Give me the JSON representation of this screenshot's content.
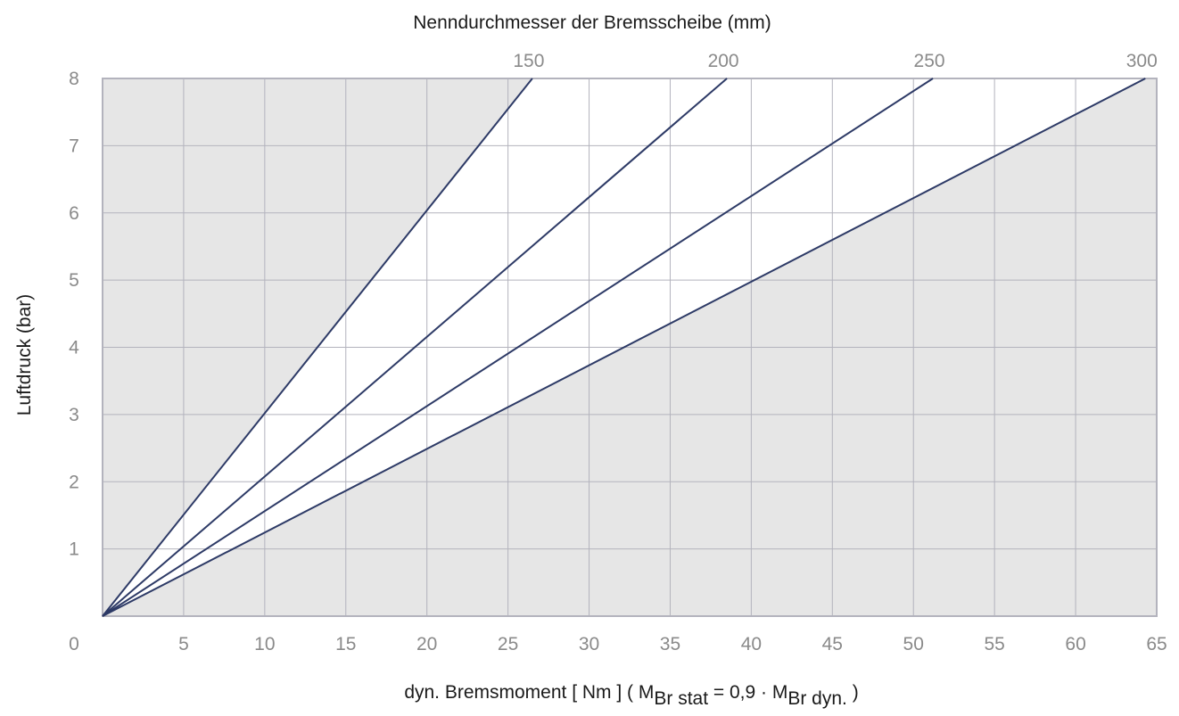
{
  "chart_data": {
    "type": "line",
    "title": "",
    "top_axis_label": "Nenndurchmesser der Bremsscheibe (mm)",
    "xlabel": "dyn. Bremsmoment [ Nm ] ( M",
    "xlabel_sub1": "Br stat",
    "xlabel_mid": " = 0,9 · M",
    "xlabel_sub2": "Br dyn.",
    "xlabel_end": " )",
    "ylabel": "Luftdruck (bar)",
    "xlim": [
      0,
      65
    ],
    "ylim": [
      0,
      8
    ],
    "x_ticks": [
      0,
      5,
      10,
      15,
      20,
      25,
      30,
      35,
      40,
      45,
      50,
      55,
      60,
      65
    ],
    "x_tick_labels": [
      "0",
      "5",
      "10",
      "15",
      "20",
      "25",
      "30",
      "35",
      "40",
      "45",
      "50",
      "55",
      "60",
      "65"
    ],
    "y_ticks": [
      1,
      2,
      3,
      4,
      5,
      6,
      7,
      8
    ],
    "y_tick_labels": [
      "1",
      "2",
      "3",
      "4",
      "5",
      "6",
      "7",
      "8"
    ],
    "grid": true,
    "colors": {
      "line": "#2d3a66",
      "shaded_region": "#e6e6e6",
      "grid": "#b3b3bd",
      "tick_text": "#8a8a8a"
    },
    "series": [
      {
        "label": "150",
        "x": [
          0,
          26.5
        ],
        "y": [
          0,
          8
        ]
      },
      {
        "label": "200",
        "x": [
          0,
          38.5
        ],
        "y": [
          0,
          8
        ]
      },
      {
        "label": "250",
        "x": [
          0,
          51.2
        ],
        "y": [
          0,
          8
        ]
      },
      {
        "label": "300",
        "x": [
          0,
          64.3
        ],
        "y": [
          0,
          8
        ]
      }
    ]
  }
}
